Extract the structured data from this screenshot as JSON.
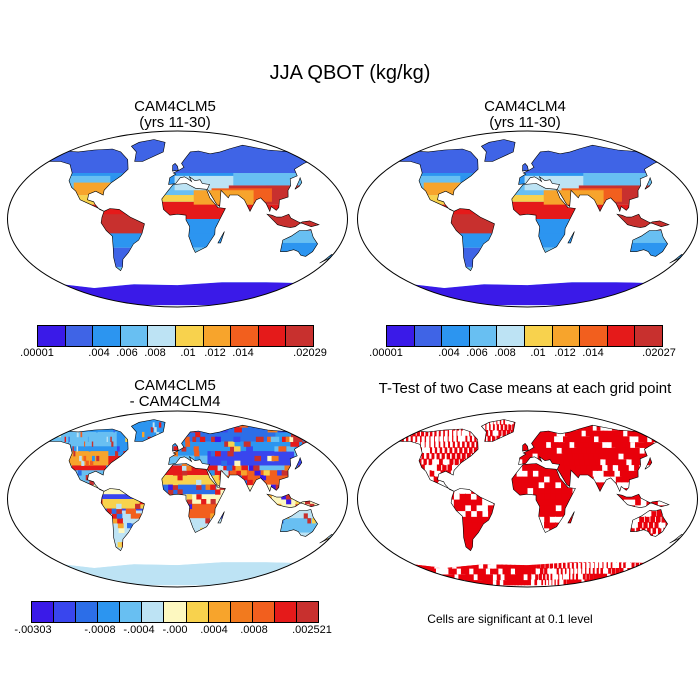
{
  "title": "JJA QBOT (kg/kg)",
  "panels": {
    "top_left": {
      "title_line1": "CAM4CLM5",
      "title_line2": "(yrs 11-30)"
    },
    "top_right": {
      "title_line1": "CAM4CLM4",
      "title_line2": "(yrs 11-30)"
    },
    "bottom_left": {
      "title_line1": "CAM4CLM5",
      "title_line2": "- CAM4CLM4"
    },
    "bottom_right": {
      "title": "T-Test of two Case means at each grid point"
    }
  },
  "colorbars": {
    "top_left": {
      "colors": [
        "#3a1ae8",
        "#3f64e6",
        "#2c95f0",
        "#68bff2",
        "#bde3f4",
        "#f8d24d",
        "#f7a42c",
        "#f25f1e",
        "#e51a1a",
        "#c8302e"
      ],
      "labels": [
        ".00001",
        ".004",
        ".006",
        ".008",
        ".01",
        ".012",
        ".014",
        ".02029"
      ]
    },
    "top_right": {
      "colors": [
        "#3a1ae8",
        "#3f64e6",
        "#2c95f0",
        "#68bff2",
        "#bde3f4",
        "#f8d24d",
        "#f7a42c",
        "#f25f1e",
        "#e51a1a",
        "#c8302e"
      ],
      "labels": [
        ".00001",
        ".004",
        ".006",
        ".008",
        ".01",
        ".012",
        ".014",
        ".02027"
      ]
    },
    "bottom_left": {
      "colors": [
        "#3a1ae8",
        "#3946ee",
        "#2c6ee8",
        "#2c95f0",
        "#68bff2",
        "#bde3f4",
        "#fdf8c0",
        "#f8d24d",
        "#f7a42c",
        "#f27a1e",
        "#f25f1e",
        "#e51a1a",
        "#c8302e"
      ],
      "labels": [
        "-.00303",
        "-.0008",
        "-.0004",
        "-.000",
        ".0004",
        ".0008",
        ".002521"
      ]
    }
  },
  "note": "Cells are significant at 0.1 level",
  "palette": {
    "ocean": "#ffffff",
    "antarctica": "#3a1ae8",
    "significance": "#e8000b",
    "diff_antarctica": "#bde3f4"
  }
}
